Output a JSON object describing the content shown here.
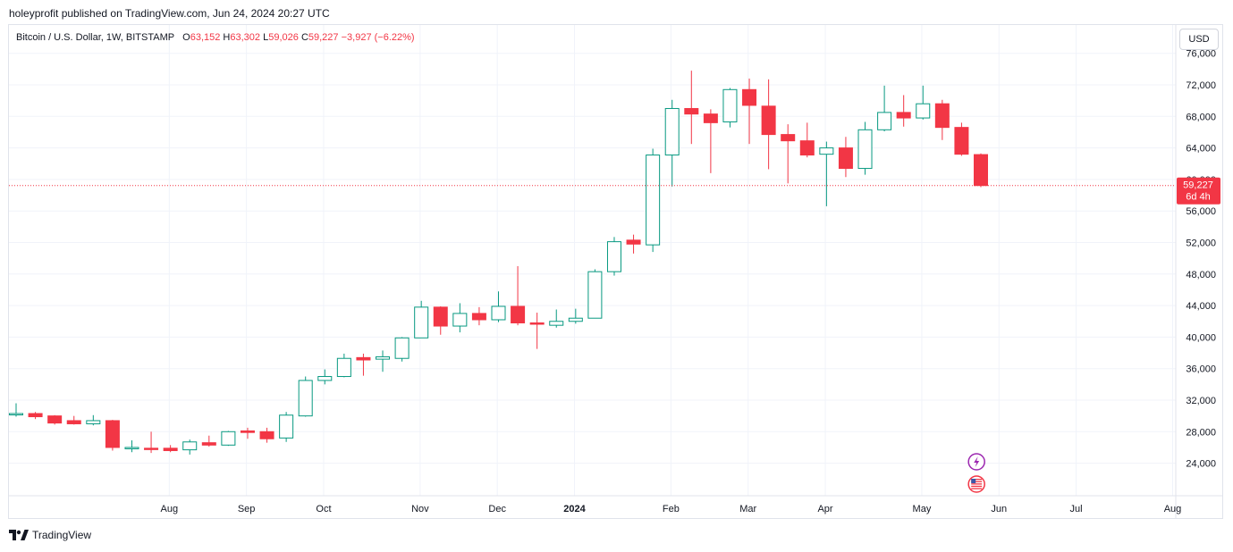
{
  "header": {
    "published_line": "holeyprofit published on TradingView.com, Jun 24, 2024 20:27 UTC"
  },
  "legend": {
    "symbol": "Bitcoin / U.S. Dollar, 1W, BITSTAMP",
    "open_label": "O",
    "open": "63,152",
    "high_label": "H",
    "high": "63,302",
    "low_label": "L",
    "low": "59,026",
    "close_label": "C",
    "close": "59,227",
    "change": "−3,927 (−6.22%)"
  },
  "currency_button": "USD",
  "price_badge": {
    "price": "59,227",
    "countdown": "6d 4h"
  },
  "footer": {
    "brand": "TradingView"
  },
  "colors": {
    "up": "#089981",
    "down": "#f23645",
    "grid": "#f0f3fa",
    "axis_text": "#131722",
    "event_icon": "#9c27b0"
  },
  "chart_data": {
    "type": "candlestick",
    "y_axis": {
      "ticks": [
        24000,
        28000,
        32000,
        36000,
        40000,
        44000,
        48000,
        52000,
        56000,
        60000,
        64000,
        68000,
        72000,
        76000
      ],
      "tick_labels": [
        "24,000",
        "28,000",
        "32,000",
        "36,000",
        "40,000",
        "44,000",
        "48,000",
        "52,000",
        "56,000",
        "60,000",
        "64,000",
        "68,000",
        "72,000",
        "76,000"
      ]
    },
    "x_axis_labels": [
      {
        "label": "Aug",
        "index": 4.0
      },
      {
        "label": "Sep",
        "index": 8.0
      },
      {
        "label": "Oct",
        "index": 12.0
      },
      {
        "label": "Nov",
        "index": 17.0
      },
      {
        "label": "Dec",
        "index": 21.0
      },
      {
        "label": "2024",
        "index": 25.0,
        "bold": true
      },
      {
        "label": "Feb",
        "index": 30.0
      },
      {
        "label": "Mar",
        "index": 34.0
      },
      {
        "label": "Apr",
        "index": 38.0
      },
      {
        "label": "May",
        "index": 43.0
      },
      {
        "label": "Jun",
        "index": 47.0
      },
      {
        "label": "Jul",
        "index": 51.0
      },
      {
        "label": "Aug",
        "index": 56.0
      }
    ],
    "candles": [
      {
        "o": 30200,
        "h": 31600,
        "l": 29900,
        "c": 30300
      },
      {
        "o": 30300,
        "h": 30500,
        "l": 29600,
        "c": 29900
      },
      {
        "o": 30000,
        "h": 30100,
        "l": 28900,
        "c": 29100
      },
      {
        "o": 29400,
        "h": 30000,
        "l": 28900,
        "c": 29000
      },
      {
        "o": 29000,
        "h": 30100,
        "l": 28800,
        "c": 29400
      },
      {
        "o": 29400,
        "h": 29500,
        "l": 25600,
        "c": 26000
      },
      {
        "o": 26000,
        "h": 26900,
        "l": 25400,
        "c": 26000
      },
      {
        "o": 25900,
        "h": 28000,
        "l": 25300,
        "c": 25800
      },
      {
        "o": 25900,
        "h": 26300,
        "l": 25400,
        "c": 25600
      },
      {
        "o": 25700,
        "h": 27000,
        "l": 25100,
        "c": 26700
      },
      {
        "o": 26600,
        "h": 27500,
        "l": 26100,
        "c": 26300
      },
      {
        "o": 26300,
        "h": 28100,
        "l": 26200,
        "c": 28000
      },
      {
        "o": 28100,
        "h": 28500,
        "l": 27100,
        "c": 27900
      },
      {
        "o": 28000,
        "h": 28500,
        "l": 26600,
        "c": 27100
      },
      {
        "o": 27200,
        "h": 30500,
        "l": 26700,
        "c": 30100
      },
      {
        "o": 30000,
        "h": 35000,
        "l": 29900,
        "c": 34500
      },
      {
        "o": 34500,
        "h": 35900,
        "l": 34000,
        "c": 35000
      },
      {
        "o": 35000,
        "h": 37900,
        "l": 34900,
        "c": 37300
      },
      {
        "o": 37400,
        "h": 37900,
        "l": 35100,
        "c": 37100
      },
      {
        "o": 37200,
        "h": 38300,
        "l": 35600,
        "c": 37500
      },
      {
        "o": 37300,
        "h": 40000,
        "l": 36900,
        "c": 39900
      },
      {
        "o": 39900,
        "h": 44600,
        "l": 39900,
        "c": 43800
      },
      {
        "o": 43800,
        "h": 43900,
        "l": 40300,
        "c": 41400
      },
      {
        "o": 41400,
        "h": 44300,
        "l": 40600,
        "c": 43000
      },
      {
        "o": 43000,
        "h": 43800,
        "l": 41500,
        "c": 42200
      },
      {
        "o": 42200,
        "h": 45800,
        "l": 41900,
        "c": 43900
      },
      {
        "o": 43900,
        "h": 49000,
        "l": 41500,
        "c": 41800
      },
      {
        "o": 41800,
        "h": 43100,
        "l": 38500,
        "c": 41700
      },
      {
        "o": 41500,
        "h": 43500,
        "l": 41200,
        "c": 42000
      },
      {
        "o": 42000,
        "h": 43600,
        "l": 41700,
        "c": 42400
      },
      {
        "o": 42400,
        "h": 48600,
        "l": 42400,
        "c": 48300
      },
      {
        "o": 48300,
        "h": 52700,
        "l": 47800,
        "c": 52100
      },
      {
        "o": 52300,
        "h": 53000,
        "l": 50600,
        "c": 51800
      },
      {
        "o": 51700,
        "h": 63900,
        "l": 50800,
        "c": 63100
      },
      {
        "o": 63100,
        "h": 70100,
        "l": 59100,
        "c": 69000
      },
      {
        "o": 69000,
        "h": 73800,
        "l": 64500,
        "c": 68300
      },
      {
        "o": 68300,
        "h": 68900,
        "l": 60800,
        "c": 67200
      },
      {
        "o": 67300,
        "h": 71600,
        "l": 66600,
        "c": 71400
      },
      {
        "o": 71400,
        "h": 72800,
        "l": 64500,
        "c": 69400
      },
      {
        "o": 69300,
        "h": 72700,
        "l": 61300,
        "c": 65700
      },
      {
        "o": 65700,
        "h": 67000,
        "l": 59500,
        "c": 64900
      },
      {
        "o": 64900,
        "h": 67200,
        "l": 62800,
        "c": 63100
      },
      {
        "o": 63200,
        "h": 64800,
        "l": 56600,
        "c": 64000
      },
      {
        "o": 64000,
        "h": 65400,
        "l": 60300,
        "c": 61400
      },
      {
        "o": 61400,
        "h": 67300,
        "l": 60600,
        "c": 66300
      },
      {
        "o": 66300,
        "h": 71900,
        "l": 66100,
        "c": 68500
      },
      {
        "o": 68500,
        "h": 70700,
        "l": 66700,
        "c": 67800
      },
      {
        "o": 67800,
        "h": 71900,
        "l": 67600,
        "c": 69600
      },
      {
        "o": 69600,
        "h": 70100,
        "l": 65000,
        "c": 66600
      },
      {
        "o": 66600,
        "h": 67200,
        "l": 63000,
        "c": 63200
      },
      {
        "o": 63152,
        "h": 63302,
        "l": 59026,
        "c": 59227
      }
    ],
    "last_price": 59227,
    "events": [
      {
        "index": 49.8,
        "type": "lightning-event"
      },
      {
        "index": 49.8,
        "type": "us-flag-event"
      }
    ]
  }
}
